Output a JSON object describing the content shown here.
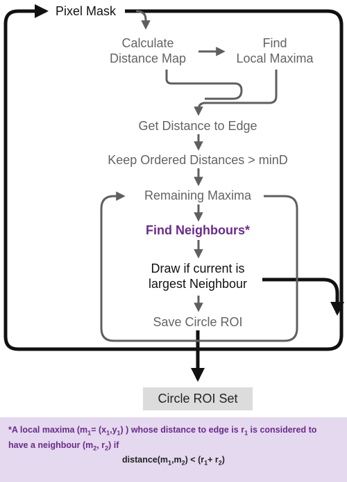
{
  "nodes": {
    "start": "Pixel Mask",
    "calculate": [
      "Calculate",
      "Distance Map"
    ],
    "find_maxima": [
      "Find",
      "Local Maxima"
    ],
    "distance_to_edge": "Get Distance to Edge",
    "keep_ordered": "Keep Ordered Distances > minD",
    "remaining": "Remaining Maxima",
    "find_neighbours": "Find Neighbours*",
    "draw": [
      "Draw if current is",
      "largest Neighbour"
    ],
    "save": "Save Circle ROI",
    "result": "Circle ROI Set"
  },
  "footnote": {
    "p1": "*A local maxima (m",
    "s1": "1",
    "p2": "= (x",
    "s2": "1",
    "p3": ",y",
    "s3": "1",
    "p4": ") ) whose distance to edge is r",
    "s4": "1",
    "p5": " is considered to have a neighbour (m",
    "s5": "2",
    "p6": ", r",
    "s6": "2",
    "p7": ") if",
    "eq_p1": "distance(m",
    "eq_s1": "1",
    "eq_p2": ",m",
    "eq_s2": "2",
    "eq_p3": ") < (r",
    "eq_s3": "1",
    "eq_p4": "+ r",
    "eq_s4": "2",
    "eq_p5": ")"
  },
  "colors": {
    "grey_flow": "#5f5f5f",
    "black_flow": "#111111",
    "highlight": "#6b2a8c",
    "footnote_bg": "#e4d9ee",
    "result_bg": "#dcdcdc"
  }
}
